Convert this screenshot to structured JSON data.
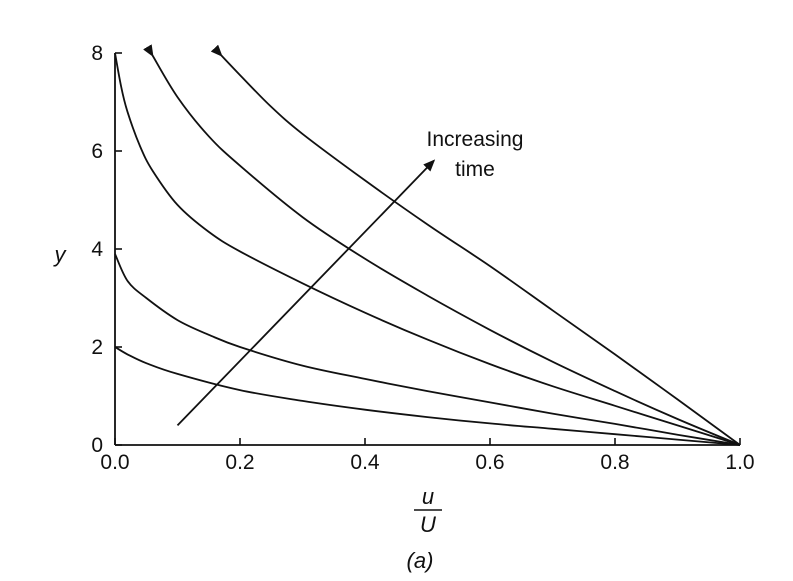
{
  "chart_data": {
    "type": "line",
    "xlabel_numerator": "u",
    "xlabel_denominator": "U",
    "ylabel": "y",
    "caption": "(a)",
    "xlim": [
      0,
      1.0
    ],
    "ylim": [
      0,
      8
    ],
    "x_ticks": [
      0.0,
      0.2,
      0.4,
      0.6,
      0.8,
      1.0
    ],
    "x_tick_labels": [
      "0.0",
      "0.2",
      "0.4",
      "0.6",
      "0.8",
      "1.0"
    ],
    "y_ticks": [
      0,
      2,
      4,
      6,
      8
    ],
    "y_tick_labels": [
      "0",
      "2",
      "4",
      "6",
      "8"
    ],
    "grid": false,
    "annotation": {
      "lines": [
        "Increasing",
        "time"
      ],
      "arrow_from": [
        0.1,
        0.4
      ],
      "arrow_to": [
        0.51,
        5.8
      ]
    },
    "series": [
      {
        "x": [
          0.0,
          0.02,
          0.05,
          0.1,
          0.2,
          0.3,
          0.4,
          0.5,
          0.6,
          0.7,
          0.8,
          0.9,
          1.0
        ],
        "y": [
          2.0,
          1.85,
          1.67,
          1.45,
          1.12,
          0.9,
          0.72,
          0.57,
          0.44,
          0.33,
          0.22,
          0.11,
          0.0
        ]
      },
      {
        "x": [
          0.0,
          0.02,
          0.05,
          0.1,
          0.15,
          0.2,
          0.3,
          0.4,
          0.5,
          0.6,
          0.7,
          0.8,
          0.9,
          1.0
        ],
        "y": [
          3.9,
          3.35,
          3.0,
          2.55,
          2.25,
          2.0,
          1.62,
          1.35,
          1.1,
          0.87,
          0.64,
          0.43,
          0.21,
          0.0
        ]
      },
      {
        "x": [
          0.0,
          0.01,
          0.02,
          0.04,
          0.06,
          0.1,
          0.15,
          0.2,
          0.3,
          0.4,
          0.5,
          0.6,
          0.7,
          0.8,
          0.9,
          1.0
        ],
        "y": [
          8.0,
          7.3,
          6.8,
          6.1,
          5.6,
          4.9,
          4.35,
          3.95,
          3.3,
          2.7,
          2.15,
          1.65,
          1.2,
          0.8,
          0.4,
          0.0
        ]
      },
      {
        "x": [
          0.06,
          0.1,
          0.15,
          0.2,
          0.3,
          0.4,
          0.5,
          0.6,
          0.7,
          0.8,
          0.9,
          1.0
        ],
        "y": [
          7.95,
          7.1,
          6.3,
          5.7,
          4.65,
          3.8,
          3.05,
          2.35,
          1.7,
          1.1,
          0.53,
          0.0
        ]
      },
      {
        "x": [
          0.17,
          0.2,
          0.25,
          0.3,
          0.4,
          0.5,
          0.6,
          0.7,
          0.8,
          0.9,
          1.0
        ],
        "y": [
          7.95,
          7.55,
          6.9,
          6.35,
          5.4,
          4.5,
          3.65,
          2.75,
          1.85,
          0.93,
          0.0
        ]
      }
    ]
  }
}
